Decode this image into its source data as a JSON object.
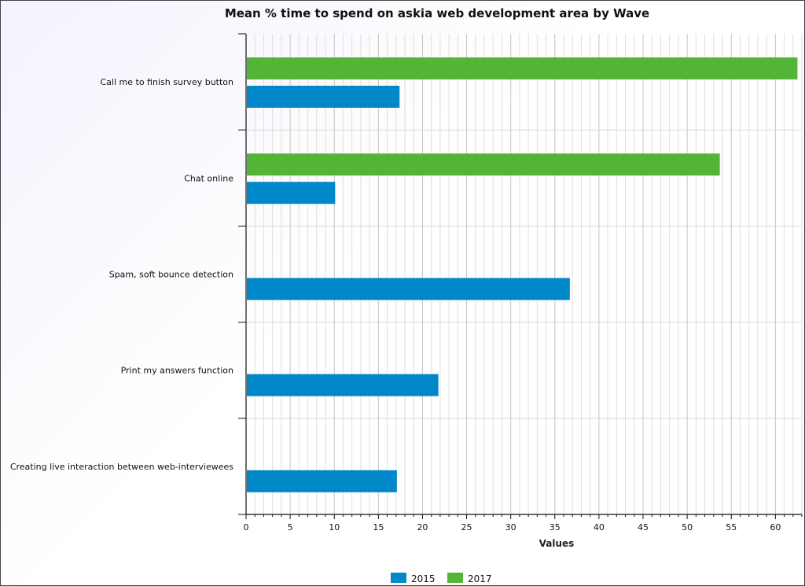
{
  "chart_data": {
    "type": "bar",
    "orientation": "horizontal",
    "title": "Mean % time to spend on askia web development area by Wave",
    "xlabel": "Values",
    "ylabel": "",
    "xlim": [
      0,
      63
    ],
    "x_ticks": [
      0,
      5,
      10,
      15,
      20,
      25,
      30,
      35,
      40,
      45,
      50,
      55,
      60
    ],
    "x_minor_step": 1,
    "grid": true,
    "legend_position": "bottom",
    "categories": [
      "Call me to finish survey button",
      "Chat online",
      "Spam, soft bounce detection",
      "Print my answers function",
      "Creating live interaction between web-interviewees"
    ],
    "series": [
      {
        "name": "2017",
        "color": "#54b435",
        "values": [
          62.5,
          53.7,
          null,
          null,
          null
        ]
      },
      {
        "name": "2015",
        "color": "#0088c8",
        "values": [
          17.4,
          10.1,
          36.7,
          21.8,
          17.1
        ]
      }
    ],
    "legend": [
      {
        "name": "2015",
        "color": "#0088c8"
      },
      {
        "name": "2017",
        "color": "#54b435"
      }
    ]
  }
}
